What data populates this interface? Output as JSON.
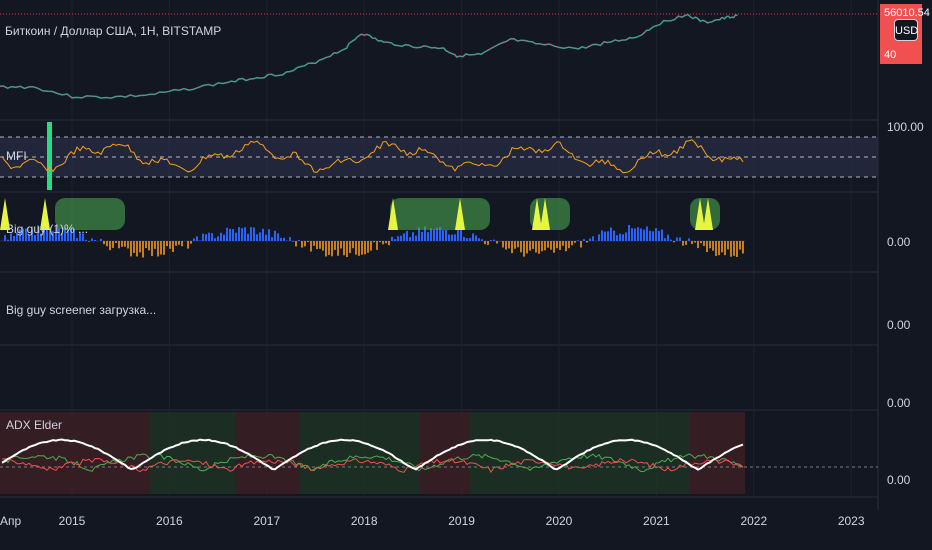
{
  "title": "Биткоин / Доллар США, 1H, BITSTAMP",
  "price_badge": {
    "line1": "56010.54",
    "line2": "40"
  },
  "currency_button": "USD",
  "panes": {
    "mfi": {
      "label": "MFI",
      "axis": "100.00"
    },
    "bigguy": {
      "label": "Big guy (1)% ...",
      "axis": "0.00"
    },
    "screener": {
      "label": "Big guy screener загрузка...",
      "axis": "0.00"
    },
    "empty": {
      "axis": "0.00"
    },
    "adx": {
      "label": "ADX Elder",
      "axis": "0.00"
    }
  },
  "x_axis": {
    "first_label": "Апр",
    "years": [
      "2015",
      "2016",
      "2017",
      "2018",
      "2019",
      "2020",
      "2021",
      "2022",
      "2023"
    ]
  },
  "colors": {
    "background": "#131722",
    "price_line": "#f23645",
    "mfi_line": "#f7a21b",
    "mfi_band": "#2a2e45",
    "adx_white": "#ffffff",
    "adx_green": "#4caf50",
    "adx_red": "#f05050",
    "bar_blue": "#2962ff",
    "bar_orange": "#c77e22"
  },
  "chart_data": [
    {
      "type": "line",
      "name": "price",
      "x": [
        2014.25,
        2014.6,
        2015.0,
        2015.4,
        2015.8,
        2016.2,
        2016.6,
        2016.9,
        2017.2,
        2017.5,
        2017.8,
        2017.97,
        2018.2,
        2018.5,
        2018.8,
        2018.95,
        2019.2,
        2019.5,
        2019.8,
        2020.2,
        2020.5,
        2020.8,
        2021.0,
        2021.3,
        2021.5,
        2021.7,
        2021.85
      ],
      "y": [
        480,
        470,
        250,
        240,
        280,
        420,
        650,
        900,
        1200,
        2500,
        6000,
        17000,
        9000,
        7000,
        6300,
        3800,
        4000,
        11000,
        8000,
        6000,
        9200,
        13000,
        30000,
        58000,
        34000,
        45000,
        56000
      ]
    },
    {
      "type": "line",
      "name": "MFI",
      "ylim": [
        0,
        100
      ]
    },
    {
      "type": "bar",
      "name": "Big guy",
      "ylim": [
        -1,
        1
      ]
    },
    {
      "type": "line",
      "name": "ADX Elder"
    }
  ]
}
